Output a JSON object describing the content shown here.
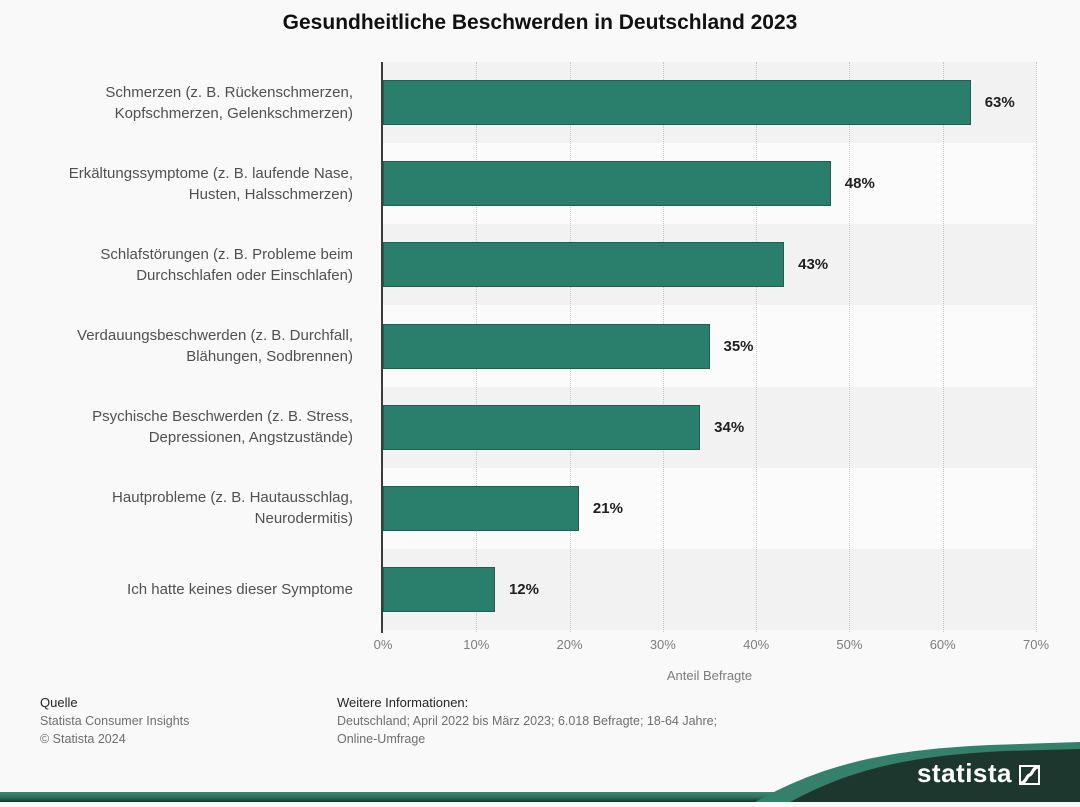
{
  "title": "Gesundheitliche Beschwerden in Deutschland 2023",
  "chart_data": {
    "type": "bar",
    "orientation": "horizontal",
    "categories": [
      [
        "Schmerzen (z. B. Rückenschmerzen,",
        "Kopfschmerzen, Gelenkschmerzen)"
      ],
      [
        "Erkältungssymptome (z. B. laufende Nase,",
        "Husten, Halsschmerzen)"
      ],
      [
        "Schlafstörungen (z. B. Probleme beim",
        "Durchschlafen oder Einschlafen)"
      ],
      [
        "Verdauungsbeschwerden (z. B. Durchfall,",
        "Blähungen, Sodbrennen)"
      ],
      [
        "Psychische Beschwerden (z. B. Stress,",
        "Depressionen, Angstzustände)"
      ],
      [
        "Hautprobleme (z. B. Hautausschlag,",
        "Neurodermitis)"
      ],
      [
        "Ich hatte keines dieser Symptome"
      ]
    ],
    "values": [
      63,
      48,
      43,
      35,
      34,
      21,
      12
    ],
    "value_labels": [
      "63%",
      "48%",
      "43%",
      "35%",
      "34%",
      "21%",
      "12%"
    ],
    "xlabel": "Anteil Befragte",
    "x_ticks": [
      "0%",
      "10%",
      "20%",
      "30%",
      "40%",
      "50%",
      "60%",
      "70%"
    ],
    "xlim": [
      0,
      70
    ],
    "grid": "vertical-dotted",
    "legend": "none",
    "bar_color": "#2a7e6c",
    "bar_border_color": "#215e4f",
    "band_color_odd": "#f2f2f2",
    "band_color_even": "#fbfbfb"
  },
  "footer": {
    "source_heading": "Quelle",
    "source_lines": [
      "Statista Consumer Insights",
      "© Statista 2024"
    ],
    "info_heading": "Weitere Informationen:",
    "info_lines": [
      "Deutschland; April 2022 bis März 2023; 6.018 Befragte; 18-64 Jahre;",
      "Online-Umfrage"
    ]
  },
  "brand": {
    "wordmark": "statista",
    "logo_mark_icon": "statista-s-curve-icon",
    "teal": "#35806b",
    "dark_green": "#1d372f"
  }
}
